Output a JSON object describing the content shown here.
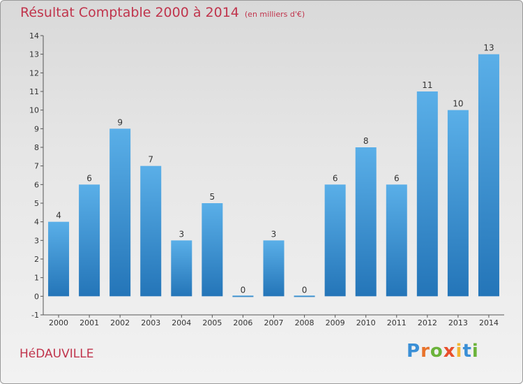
{
  "title": "Résultat Comptable 2000 à 2014",
  "unit": "(en milliers d'€)",
  "commune": "HéDAUVILLE",
  "logo": {
    "text": "Proxiti",
    "letters": [
      {
        "ch": "P",
        "color": "#3a8fd6"
      },
      {
        "ch": "r",
        "color": "#e8732b"
      },
      {
        "ch": "o",
        "color": "#6bb33a"
      },
      {
        "ch": "x",
        "color": "#e84f2b"
      },
      {
        "ch": "i",
        "color": "#f2b632"
      },
      {
        "ch": "t",
        "color": "#3a8fd6"
      },
      {
        "ch": "i",
        "color": "#6bb33a"
      }
    ]
  },
  "colors": {
    "bar_light": "#5aafe8",
    "bar_dark": "#2475b8",
    "title": "#c0344c"
  },
  "chart_data": {
    "type": "bar",
    "categories": [
      "2000",
      "2001",
      "2002",
      "2003",
      "2004",
      "2005",
      "2006",
      "2007",
      "2008",
      "2009",
      "2010",
      "2011",
      "2012",
      "2013",
      "2014"
    ],
    "values": [
      4,
      6,
      9,
      7,
      3,
      5,
      0,
      3,
      0,
      6,
      8,
      6,
      11,
      10,
      13
    ],
    "title": "Résultat Comptable 2000 à 2014",
    "xlabel": "",
    "ylabel": "",
    "ylim": [
      -1,
      14
    ],
    "yticks": [
      -1,
      0,
      1,
      2,
      3,
      4,
      5,
      6,
      7,
      8,
      9,
      10,
      11,
      12,
      13,
      14
    ],
    "grid": false,
    "legend": "none"
  }
}
